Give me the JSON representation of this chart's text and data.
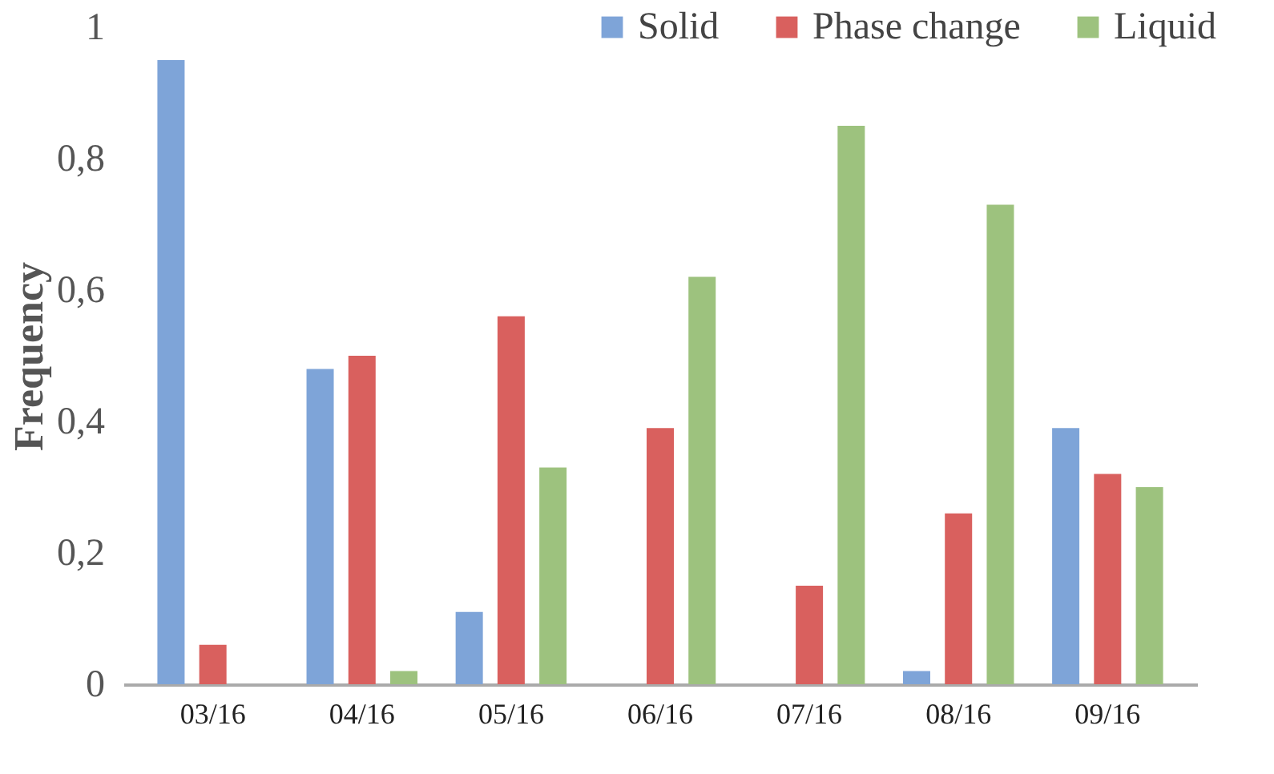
{
  "chart_data": {
    "type": "bar",
    "ylabel": "Frequency",
    "categories": [
      "03/16",
      "04/16",
      "05/16",
      "06/16",
      "07/16",
      "08/16",
      "09/16"
    ],
    "series": [
      {
        "name": "Solid",
        "color": "#7ea4d8",
        "values": [
          0.95,
          0.48,
          0.11,
          0,
          0,
          0.02,
          0.39
        ]
      },
      {
        "name": "Phase change",
        "color": "#d9605e",
        "values": [
          0.06,
          0.5,
          0.56,
          0.39,
          0.15,
          0.26,
          0.32
        ]
      },
      {
        "name": "Liquid",
        "color": "#9dc27e",
        "values": [
          0,
          0.02,
          0.33,
          0.62,
          0.85,
          0.73,
          0.3
        ]
      }
    ],
    "ylim": [
      0,
      1
    ],
    "yticks": [
      0,
      {
        "value": 0.2,
        "label": "0,2"
      },
      {
        "value": 0.4,
        "label": "0,4"
      },
      {
        "value": 0.6,
        "label": "0,6"
      },
      {
        "value": 0.8,
        "label": "0,8"
      },
      1
    ],
    "grid": false,
    "legend": "top right"
  }
}
